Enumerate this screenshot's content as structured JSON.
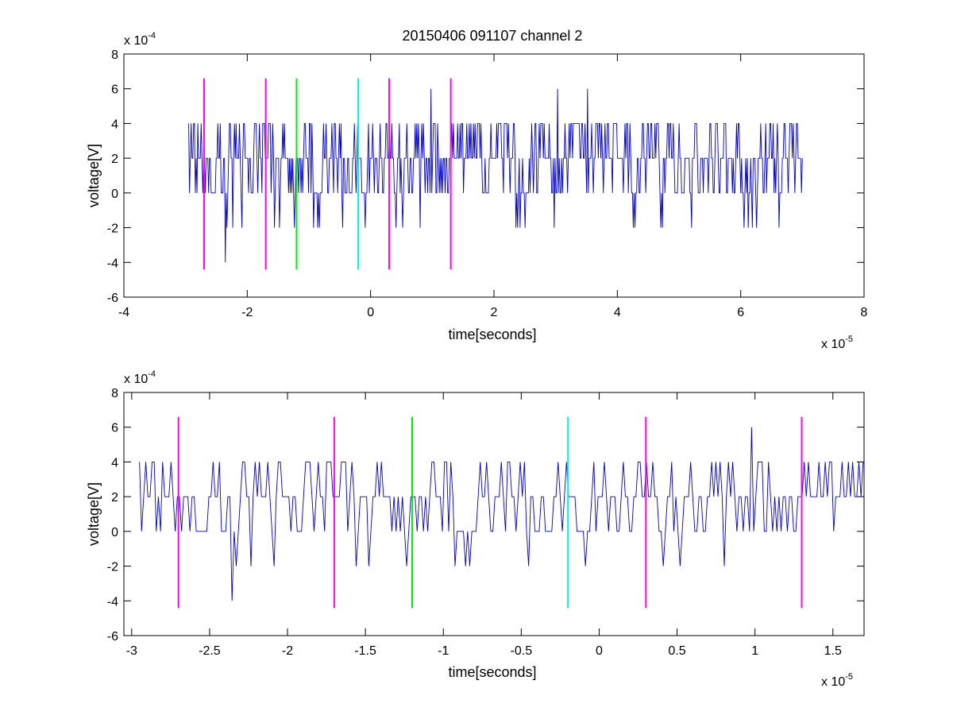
{
  "title": "20150406 091107 channel 2",
  "chart_data": [
    {
      "type": "line",
      "xlabel": "time[seconds]",
      "ylabel": "voltage[V]",
      "x_multiplier": {
        "base": "x 10",
        "exp": "-5"
      },
      "y_multiplier": {
        "base": "x 10",
        "exp": "-4"
      },
      "xlim": [
        -4,
        8
      ],
      "ylim": [
        -6,
        8
      ],
      "x_ticks": [
        "-4",
        "-2",
        "0",
        "2",
        "4",
        "6",
        "8"
      ],
      "y_ticks": [
        "-6",
        "-4",
        "-2",
        "0",
        "2",
        "4",
        "6",
        "8"
      ],
      "series_color": "#0000cc",
      "signal": {
        "x_start": -2.95,
        "x_end": 7.0,
        "levels_observed": [
          -4,
          -2,
          0,
          2,
          4,
          6
        ],
        "baseline": 2,
        "spikes": [
          {
            "x": -2.35,
            "y": -4
          },
          {
            "x": 0.98,
            "y": 6
          },
          {
            "x": 3.03,
            "y": 6
          },
          {
            "x": 3.52,
            "y": 6
          }
        ]
      },
      "markers": [
        {
          "x": -2.7,
          "color": "#ff00ff",
          "y_range": [
            -4.4,
            6.6
          ]
        },
        {
          "x": -1.7,
          "color": "#ff00ff",
          "y_range": [
            -4.4,
            6.6
          ]
        },
        {
          "x": -1.2,
          "color": "#00ee00",
          "y_range": [
            -4.4,
            6.6
          ]
        },
        {
          "x": -0.2,
          "color": "#00eeee",
          "y_range": [
            -4.4,
            6.6
          ]
        },
        {
          "x": 0.3,
          "color": "#ff00ff",
          "y_range": [
            -4.4,
            6.6
          ]
        },
        {
          "x": 1.3,
          "color": "#ff00ff",
          "y_range": [
            -4.4,
            6.6
          ]
        }
      ]
    },
    {
      "type": "line",
      "xlabel": "time[seconds]",
      "ylabel": "voltage[V]",
      "x_multiplier": {
        "base": "x 10",
        "exp": "-5"
      },
      "y_multiplier": {
        "base": "x 10",
        "exp": "-4"
      },
      "xlim": [
        -3.05,
        1.7
      ],
      "ylim": [
        -6,
        8
      ],
      "x_ticks": [
        "-3",
        "-2.5",
        "-2",
        "-1.5",
        "-1",
        "-0.5",
        "0",
        "0.5",
        "1",
        "1.5"
      ],
      "x_tick_values": [
        -3,
        -2.5,
        -2,
        -1.5,
        -1,
        -0.5,
        0,
        0.5,
        1,
        1.5
      ],
      "y_ticks": [
        "-6",
        "-4",
        "-2",
        "0",
        "2",
        "4",
        "6",
        "8"
      ],
      "series_color": "#0000cc",
      "signal": {
        "x_start": -2.95,
        "x_end": 1.7,
        "levels_observed": [
          -4,
          -2,
          0,
          2,
          4,
          6
        ],
        "baseline": 2,
        "spikes": [
          {
            "x": -2.35,
            "y": -4
          },
          {
            "x": 0.98,
            "y": 6
          }
        ]
      },
      "markers": [
        {
          "x": -2.7,
          "color": "#ff00ff",
          "y_range": [
            -4.4,
            6.6
          ]
        },
        {
          "x": -1.7,
          "color": "#ff00ff",
          "y_range": [
            -4.4,
            6.6
          ]
        },
        {
          "x": -1.2,
          "color": "#00ee00",
          "y_range": [
            -4.4,
            6.6
          ]
        },
        {
          "x": -0.2,
          "color": "#00eeee",
          "y_range": [
            -4.4,
            6.6
          ]
        },
        {
          "x": 0.3,
          "color": "#ff00ff",
          "y_range": [
            -4.4,
            6.6
          ]
        },
        {
          "x": 1.3,
          "color": "#ff00ff",
          "y_range": [
            -4.4,
            6.6
          ]
        }
      ]
    }
  ]
}
